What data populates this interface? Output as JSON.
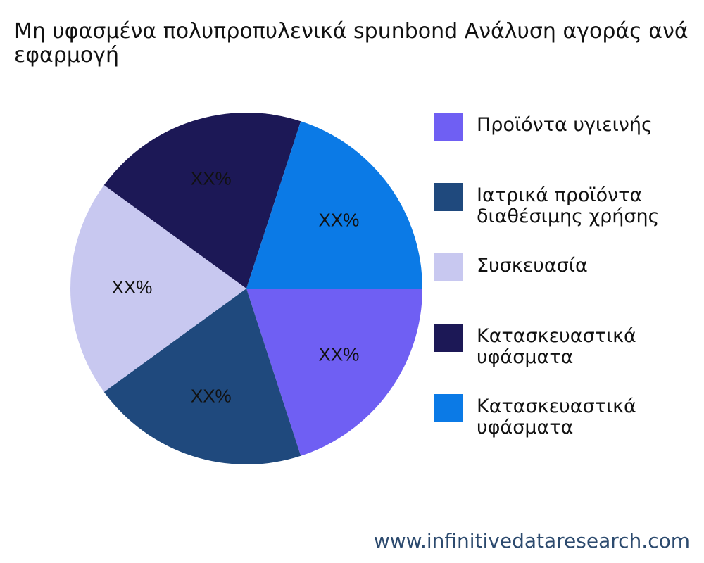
{
  "chart_data": {
    "type": "pie",
    "title": "Μη υφασμένα πολυπροπυλενικά spunbond Ανάλυση αγοράς ανά εφαρμογή",
    "categories": [
      "Προϊόντα υγιεινής",
      "Ιατρικά προϊόντα διαθέσιμης χρήσης",
      "Συσκευασία",
      "Κατασκευαστικά υφάσματα",
      "Κατασκευαστικά υφάσματα"
    ],
    "values": [
      20,
      20,
      20,
      20,
      20
    ],
    "value_labels": [
      "XX%",
      "XX%",
      "XX%",
      "XX%",
      "XX%"
    ],
    "colors": [
      "#6f5ff3",
      "#1f497d",
      "#c8c8f0",
      "#1c1856",
      "#0b7ae6"
    ],
    "legend": "right",
    "source": "www.infinitivedataresearch.com"
  }
}
